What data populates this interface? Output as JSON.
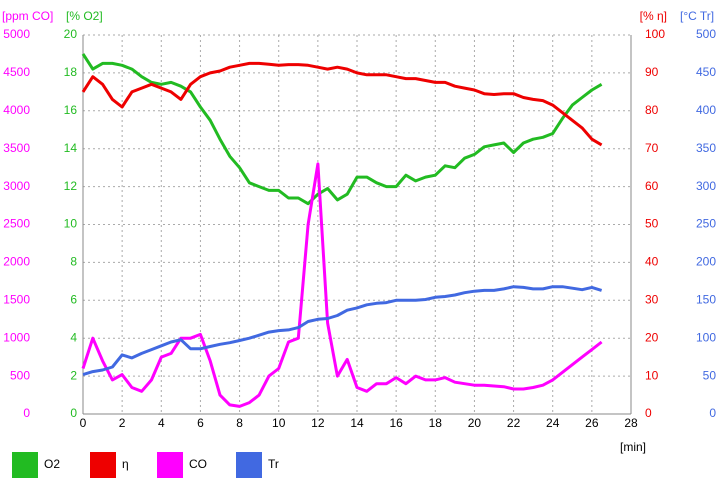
{
  "chart_data": {
    "type": "line",
    "x": [
      0,
      0.5,
      1,
      1.5,
      2,
      2.5,
      3,
      3.5,
      4,
      4.5,
      5,
      5.5,
      6,
      6.5,
      7,
      7.5,
      8,
      8.5,
      9,
      9.5,
      10,
      10.5,
      11,
      11.5,
      12,
      12.5,
      13,
      13.5,
      14,
      14.5,
      15,
      15.5,
      16,
      16.5,
      17,
      17.5,
      18,
      18.5,
      19,
      19.5,
      20,
      20.5,
      21,
      21.5,
      22,
      22.5,
      23,
      23.5,
      24,
      24.5,
      25,
      25.5,
      26,
      26.5
    ],
    "xlim": [
      0,
      28
    ],
    "xticks": [
      0,
      2,
      4,
      6,
      8,
      10,
      12,
      14,
      16,
      18,
      20,
      22,
      24,
      26,
      28
    ],
    "xlabel": "[min]",
    "ylabel": "[ppm CO]",
    "ylim": [
      0,
      5000
    ],
    "yticks": [
      0,
      500,
      1000,
      1500,
      2000,
      2500,
      3000,
      3500,
      4000,
      4500,
      5000
    ],
    "y2label": "[% O2]",
    "y2lim": [
      0,
      20
    ],
    "y2ticks": [
      0,
      2,
      4,
      6,
      8,
      10,
      12,
      14,
      16,
      18,
      20
    ],
    "y3label": "[% η]",
    "y3lim": [
      0,
      100
    ],
    "y3ticks": [
      0,
      10,
      20,
      30,
      40,
      50,
      60,
      70,
      80,
      90,
      100
    ],
    "y4label": "[°C Tr]",
    "y4lim": [
      0,
      500
    ],
    "y4ticks": [
      0,
      50,
      100,
      150,
      200,
      250,
      300,
      350,
      400,
      450,
      500
    ],
    "grid": true,
    "series": [
      {
        "name": "O2",
        "color": "#22bb22",
        "axis": "y2",
        "values": [
          19,
          18.2,
          18.5,
          18.5,
          18.4,
          18.2,
          17.8,
          17.5,
          17.4,
          17.5,
          17.3,
          17,
          16.2,
          15.5,
          14.5,
          13.6,
          13,
          12.2,
          12,
          11.8,
          11.8,
          11.4,
          11.4,
          11.1,
          11.6,
          11.9,
          11.3,
          11.6,
          12.5,
          12.5,
          12.2,
          12,
          12,
          12.6,
          12.3,
          12.5,
          12.6,
          13.1,
          13,
          13.5,
          13.7,
          14.1,
          14.2,
          14.3,
          13.8,
          14.3,
          14.5,
          14.6,
          14.8,
          15.6,
          16.3,
          16.7,
          17.1,
          17.4
        ]
      },
      {
        "name": "η",
        "color": "#ee0000",
        "axis": "y3",
        "values": [
          85,
          89,
          87,
          83,
          81,
          85,
          86,
          87,
          86,
          85,
          83,
          87,
          89,
          90,
          90.5,
          91.5,
          92,
          92.5,
          92.5,
          92.3,
          92,
          92.2,
          92.2,
          92,
          91.5,
          91,
          91.5,
          91,
          90,
          89.5,
          89.5,
          89.5,
          89,
          88.5,
          88.5,
          88,
          87.5,
          87.5,
          86.5,
          86,
          85.5,
          84.5,
          84.3,
          84.5,
          84.5,
          83.5,
          83,
          82.7,
          81.5,
          79.5,
          77.5,
          75.5,
          72.5,
          71
        ]
      },
      {
        "name": "CO",
        "color": "#ff00ff",
        "axis": "y",
        "values": [
          600,
          1000,
          700,
          450,
          520,
          350,
          300,
          450,
          750,
          800,
          1000,
          1000,
          1050,
          700,
          250,
          120,
          100,
          150,
          250,
          500,
          600,
          950,
          1000,
          2500,
          3300,
          1200,
          500,
          720,
          350,
          300,
          400,
          400,
          480,
          400,
          500,
          450,
          450,
          480,
          420,
          400,
          380,
          380,
          370,
          360,
          330,
          330,
          350,
          380,
          450,
          550,
          650,
          750,
          850,
          950
        ]
      },
      {
        "name": "Tr",
        "color": "#4169e1",
        "axis": "y4",
        "values": [
          52,
          56,
          58,
          62,
          78,
          74,
          80,
          85,
          90,
          95,
          98,
          86,
          86,
          89,
          92,
          94,
          97,
          100,
          104,
          108,
          110,
          111,
          114,
          122,
          125,
          126,
          130,
          137,
          140,
          144,
          146,
          147,
          150,
          150,
          150,
          151,
          154,
          155,
          157,
          160,
          162,
          163,
          163,
          165,
          168,
          167,
          165,
          165,
          168,
          168,
          166,
          164,
          167,
          163
        ]
      }
    ]
  }
}
